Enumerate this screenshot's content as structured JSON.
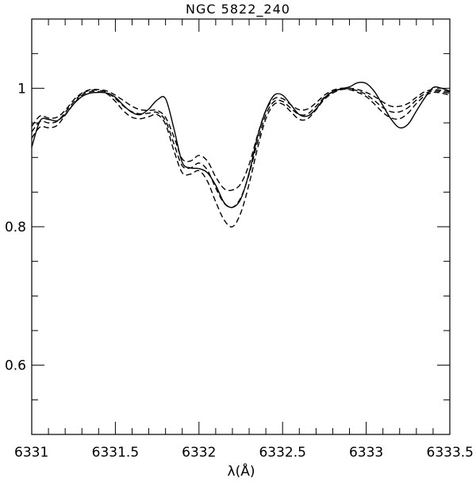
{
  "chart_data": {
    "type": "line",
    "title": "NGC 5822_240",
    "xlabel": "λ(Å)",
    "ylabel": "",
    "xlim": [
      6331.0,
      6333.5
    ],
    "ylim": [
      0.5,
      1.1
    ],
    "x_ticks": [
      6331,
      6331.5,
      6332,
      6332.5,
      6333,
      6333.5
    ],
    "x_tick_labels": [
      "6331",
      "6331.5",
      "6332",
      "6332.5",
      "6333",
      "6333.5"
    ],
    "x_minor_step": 0.1,
    "y_ticks": [
      0.6,
      0.8,
      1.0
    ],
    "y_tick_labels": [
      "0.6",
      "0.8",
      "1"
    ],
    "y_minor_step": 0.05,
    "grid": false,
    "legend": "none",
    "colors": {
      "line": "#000000",
      "background": "#ffffff"
    },
    "series": [
      {
        "style": "solid",
        "points": [
          [
            6331.0,
            0.915
          ],
          [
            6331.05,
            0.953
          ],
          [
            6331.1,
            0.955
          ],
          [
            6331.15,
            0.953
          ],
          [
            6331.2,
            0.962
          ],
          [
            6331.25,
            0.977
          ],
          [
            6331.3,
            0.988
          ],
          [
            6331.35,
            0.993
          ],
          [
            6331.4,
            0.994
          ],
          [
            6331.45,
            0.993
          ],
          [
            6331.5,
            0.987
          ],
          [
            6331.55,
            0.975
          ],
          [
            6331.6,
            0.965
          ],
          [
            6331.65,
            0.962
          ],
          [
            6331.7,
            0.97
          ],
          [
            6331.75,
            0.983
          ],
          [
            6331.8,
            0.985
          ],
          [
            6331.85,
            0.942
          ],
          [
            6331.9,
            0.893
          ],
          [
            6331.95,
            0.885
          ],
          [
            6332.0,
            0.884
          ],
          [
            6332.05,
            0.878
          ],
          [
            6332.1,
            0.86
          ],
          [
            6332.15,
            0.835
          ],
          [
            6332.2,
            0.828
          ],
          [
            6332.25,
            0.84
          ],
          [
            6332.3,
            0.878
          ],
          [
            6332.35,
            0.93
          ],
          [
            6332.4,
            0.968
          ],
          [
            6332.45,
            0.99
          ],
          [
            6332.5,
            0.99
          ],
          [
            6332.55,
            0.976
          ],
          [
            6332.6,
            0.962
          ],
          [
            6332.65,
            0.96
          ],
          [
            6332.7,
            0.97
          ],
          [
            6332.75,
            0.986
          ],
          [
            6332.8,
            0.995
          ],
          [
            6332.85,
            0.999
          ],
          [
            6332.9,
            1.002
          ],
          [
            6332.95,
            1.008
          ],
          [
            6333.0,
            1.007
          ],
          [
            6333.05,
            0.995
          ],
          [
            6333.1,
            0.975
          ],
          [
            6333.15,
            0.955
          ],
          [
            6333.2,
            0.943
          ],
          [
            6333.25,
            0.948
          ],
          [
            6333.3,
            0.967
          ],
          [
            6333.35,
            0.986
          ],
          [
            6333.4,
            1.001
          ],
          [
            6333.45,
            1.0
          ],
          [
            6333.5,
            0.996
          ]
        ]
      },
      {
        "style": "dashed",
        "points": [
          [
            6331.0,
            0.945
          ],
          [
            6331.05,
            0.96
          ],
          [
            6331.1,
            0.957
          ],
          [
            6331.15,
            0.958
          ],
          [
            6331.2,
            0.968
          ],
          [
            6331.25,
            0.983
          ],
          [
            6331.3,
            0.993
          ],
          [
            6331.35,
            0.998
          ],
          [
            6331.4,
            0.998
          ],
          [
            6331.45,
            0.996
          ],
          [
            6331.5,
            0.99
          ],
          [
            6331.55,
            0.982
          ],
          [
            6331.6,
            0.974
          ],
          [
            6331.65,
            0.969
          ],
          [
            6331.7,
            0.968
          ],
          [
            6331.75,
            0.968
          ],
          [
            6331.8,
            0.958
          ],
          [
            6331.85,
            0.93
          ],
          [
            6331.9,
            0.898
          ],
          [
            6331.95,
            0.895
          ],
          [
            6332.0,
            0.903
          ],
          [
            6332.05,
            0.895
          ],
          [
            6332.1,
            0.872
          ],
          [
            6332.15,
            0.855
          ],
          [
            6332.2,
            0.853
          ],
          [
            6332.25,
            0.862
          ],
          [
            6332.3,
            0.89
          ],
          [
            6332.35,
            0.932
          ],
          [
            6332.4,
            0.968
          ],
          [
            6332.45,
            0.985
          ],
          [
            6332.5,
            0.985
          ],
          [
            6332.55,
            0.976
          ],
          [
            6332.6,
            0.969
          ],
          [
            6332.65,
            0.97
          ],
          [
            6332.7,
            0.979
          ],
          [
            6332.75,
            0.99
          ],
          [
            6332.8,
            0.997
          ],
          [
            6332.85,
            1.0
          ],
          [
            6332.9,
            1.0
          ],
          [
            6332.95,
            0.998
          ],
          [
            6333.0,
            0.994
          ],
          [
            6333.05,
            0.988
          ],
          [
            6333.1,
            0.98
          ],
          [
            6333.15,
            0.974
          ],
          [
            6333.2,
            0.974
          ],
          [
            6333.25,
            0.978
          ],
          [
            6333.3,
            0.987
          ],
          [
            6333.35,
            0.995
          ],
          [
            6333.4,
            0.998
          ],
          [
            6333.45,
            0.997
          ],
          [
            6333.5,
            0.995
          ]
        ]
      },
      {
        "style": "dashed",
        "points": [
          [
            6331.0,
            0.937
          ],
          [
            6331.05,
            0.952
          ],
          [
            6331.1,
            0.95
          ],
          [
            6331.15,
            0.952
          ],
          [
            6331.2,
            0.965
          ],
          [
            6331.25,
            0.98
          ],
          [
            6331.3,
            0.992
          ],
          [
            6331.35,
            0.997
          ],
          [
            6331.4,
            0.997
          ],
          [
            6331.45,
            0.994
          ],
          [
            6331.5,
            0.985
          ],
          [
            6331.55,
            0.974
          ],
          [
            6331.6,
            0.966
          ],
          [
            6331.65,
            0.963
          ],
          [
            6331.7,
            0.964
          ],
          [
            6331.75,
            0.965
          ],
          [
            6331.8,
            0.953
          ],
          [
            6331.85,
            0.92
          ],
          [
            6331.9,
            0.888
          ],
          [
            6331.95,
            0.885
          ],
          [
            6332.0,
            0.892
          ],
          [
            6332.05,
            0.882
          ],
          [
            6332.1,
            0.856
          ],
          [
            6332.15,
            0.834
          ],
          [
            6332.2,
            0.828
          ],
          [
            6332.25,
            0.842
          ],
          [
            6332.3,
            0.876
          ],
          [
            6332.35,
            0.922
          ],
          [
            6332.4,
            0.962
          ],
          [
            6332.45,
            0.981
          ],
          [
            6332.5,
            0.981
          ],
          [
            6332.55,
            0.971
          ],
          [
            6332.6,
            0.962
          ],
          [
            6332.65,
            0.963
          ],
          [
            6332.7,
            0.974
          ],
          [
            6332.75,
            0.987
          ],
          [
            6332.8,
            0.995
          ],
          [
            6332.85,
            0.999
          ],
          [
            6332.9,
            0.999
          ],
          [
            6332.95,
            0.996
          ],
          [
            6333.0,
            0.991
          ],
          [
            6333.05,
            0.982
          ],
          [
            6333.1,
            0.972
          ],
          [
            6333.15,
            0.966
          ],
          [
            6333.2,
            0.966
          ],
          [
            6333.25,
            0.972
          ],
          [
            6333.3,
            0.983
          ],
          [
            6333.35,
            0.992
          ],
          [
            6333.4,
            0.996
          ],
          [
            6333.45,
            0.995
          ],
          [
            6333.5,
            0.993
          ]
        ]
      },
      {
        "style": "dashed",
        "points": [
          [
            6331.0,
            0.928
          ],
          [
            6331.05,
            0.944
          ],
          [
            6331.1,
            0.943
          ],
          [
            6331.15,
            0.946
          ],
          [
            6331.2,
            0.961
          ],
          [
            6331.25,
            0.977
          ],
          [
            6331.3,
            0.99
          ],
          [
            6331.35,
            0.995
          ],
          [
            6331.4,
            0.995
          ],
          [
            6331.45,
            0.992
          ],
          [
            6331.5,
            0.981
          ],
          [
            6331.55,
            0.967
          ],
          [
            6331.6,
            0.958
          ],
          [
            6331.65,
            0.956
          ],
          [
            6331.7,
            0.959
          ],
          [
            6331.75,
            0.962
          ],
          [
            6331.8,
            0.948
          ],
          [
            6331.85,
            0.91
          ],
          [
            6331.9,
            0.878
          ],
          [
            6331.95,
            0.876
          ],
          [
            6332.0,
            0.881
          ],
          [
            6332.05,
            0.866
          ],
          [
            6332.1,
            0.836
          ],
          [
            6332.15,
            0.81
          ],
          [
            6332.2,
            0.8
          ],
          [
            6332.25,
            0.82
          ],
          [
            6332.3,
            0.862
          ],
          [
            6332.35,
            0.913
          ],
          [
            6332.4,
            0.956
          ],
          [
            6332.45,
            0.977
          ],
          [
            6332.5,
            0.977
          ],
          [
            6332.55,
            0.966
          ],
          [
            6332.6,
            0.955
          ],
          [
            6332.65,
            0.956
          ],
          [
            6332.7,
            0.969
          ],
          [
            6332.75,
            0.984
          ],
          [
            6332.8,
            0.993
          ],
          [
            6332.85,
            0.998
          ],
          [
            6332.9,
            0.998
          ],
          [
            6332.95,
            0.994
          ],
          [
            6333.0,
            0.988
          ],
          [
            6333.05,
            0.977
          ],
          [
            6333.1,
            0.965
          ],
          [
            6333.15,
            0.957
          ],
          [
            6333.2,
            0.956
          ],
          [
            6333.25,
            0.964
          ],
          [
            6333.3,
            0.978
          ],
          [
            6333.35,
            0.989
          ],
          [
            6333.4,
            0.994
          ],
          [
            6333.45,
            0.993
          ],
          [
            6333.5,
            0.99
          ]
        ]
      }
    ]
  }
}
